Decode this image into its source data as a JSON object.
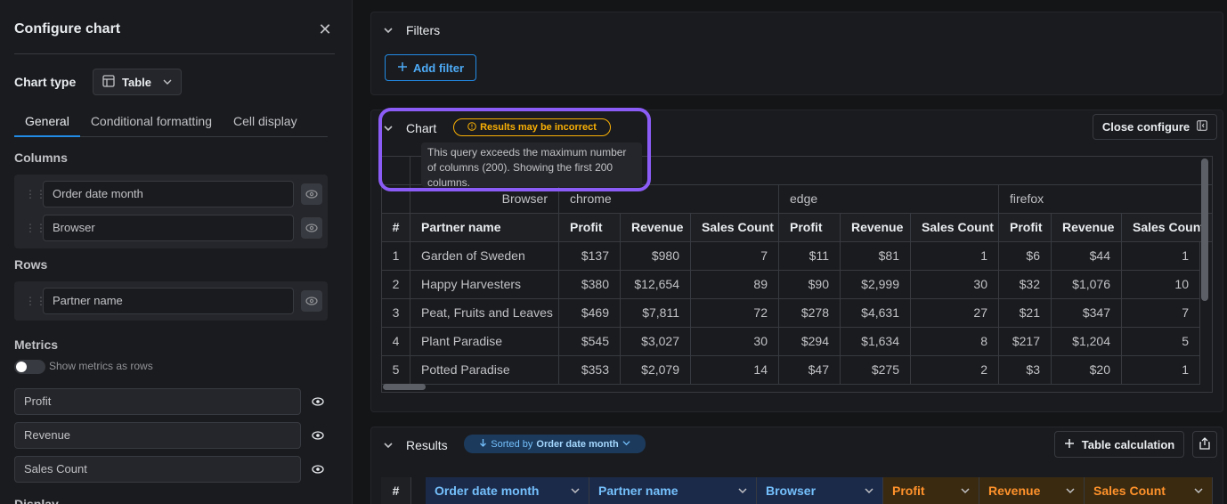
{
  "panel": {
    "title": "Configure chart",
    "chart_type_label": "Chart type",
    "chart_type_value": "Table",
    "tabs": [
      "General",
      "Conditional formatting",
      "Cell display"
    ],
    "columns_label": "Columns",
    "columns": [
      "Order date month",
      "Browser"
    ],
    "rows_label": "Rows",
    "rows": [
      "Partner name"
    ],
    "metrics_label": "Metrics",
    "metrics_toggle_label": "Show metrics as rows",
    "metrics": [
      "Profit",
      "Revenue",
      "Sales Count"
    ],
    "display_label": "Display"
  },
  "filters": {
    "title": "Filters",
    "add_filter_label": "Add filter"
  },
  "chart": {
    "title": "Chart",
    "warning_badge": "Results may be incorrect",
    "tooltip": "This query exceeds the maximum number of columns (200). Showing the first 200 columns.",
    "close_configure_label": "Close configure",
    "colors": {
      "accent": "#228be6",
      "warning": "#fab005",
      "highlight": "#8b5cf6"
    }
  },
  "pivot": {
    "browser_label": "Browser",
    "browser_groups": [
      "chrome",
      "edge",
      "firefox"
    ],
    "index_header": "#",
    "row_header": "Partner name",
    "metric_headers": [
      "Profit",
      "Revenue",
      "Sales Count",
      "Profit",
      "Revenue",
      "Sales Count",
      "Profit",
      "Revenue",
      "Sales Count"
    ],
    "rows": [
      {
        "n": "1",
        "partner": "Garden of Sweden",
        "values": [
          "$137",
          "$980",
          "7",
          "$11",
          "$81",
          "1",
          "$6",
          "$44",
          "1"
        ]
      },
      {
        "n": "2",
        "partner": "Happy Harvesters",
        "values": [
          "$380",
          "$12,654",
          "89",
          "$90",
          "$2,999",
          "30",
          "$32",
          "$1,076",
          "10"
        ]
      },
      {
        "n": "3",
        "partner": "Peat, Fruits and Leaves",
        "values": [
          "$469",
          "$7,811",
          "72",
          "$278",
          "$4,631",
          "27",
          "$21",
          "$347",
          "7"
        ]
      },
      {
        "n": "4",
        "partner": "Plant Paradise",
        "values": [
          "$545",
          "$3,027",
          "30",
          "$294",
          "$1,634",
          "8",
          "$217",
          "$1,204",
          "5"
        ]
      },
      {
        "n": "5",
        "partner": "Potted Paradise",
        "values": [
          "$353",
          "$2,079",
          "14",
          "$47",
          "$275",
          "2",
          "$3",
          "$20",
          "1"
        ]
      }
    ]
  },
  "results": {
    "title": "Results",
    "sorted_prefix": "Sorted by",
    "sorted_field": "Order date month",
    "table_calc_label": "Table calculation",
    "columns": [
      "#",
      "Order date month",
      "Partner name",
      "Browser",
      "Profit",
      "Revenue",
      "Sales Count"
    ]
  }
}
